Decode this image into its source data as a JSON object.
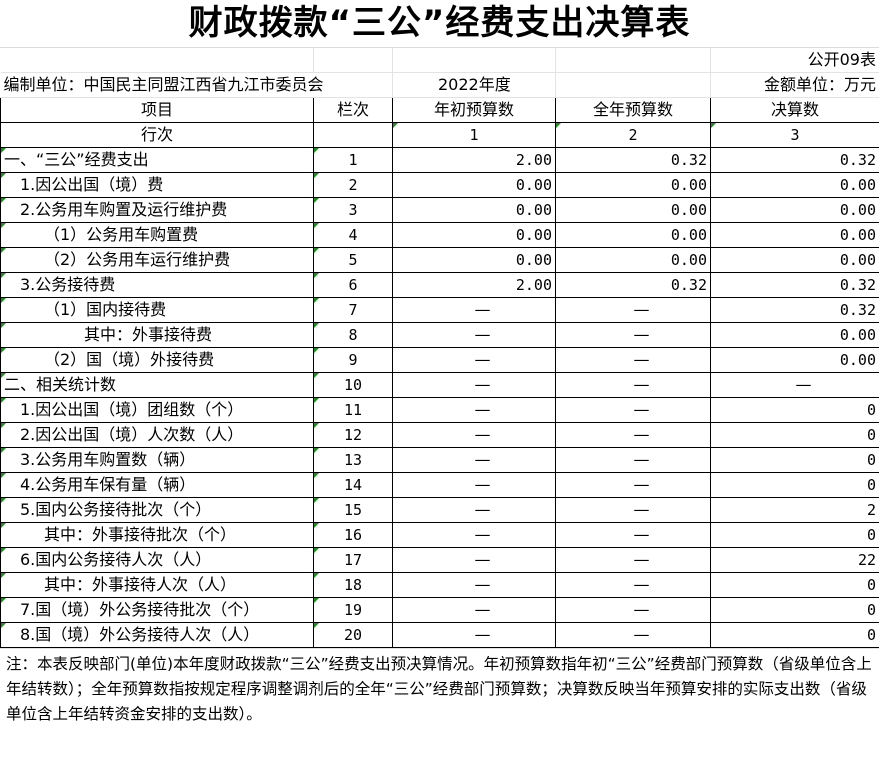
{
  "title": "财政拨款“三公”经费支出决算表",
  "form_code": "公开09表",
  "unit_label": "编制单位：中国民主同盟江西省九江市委员会",
  "year": "2022年度",
  "amount_unit": "金额单位：万元",
  "headers": {
    "item": "项目",
    "col_no": "栏次",
    "initial_budget": "年初预算数",
    "annual_budget": "全年预算数",
    "final_account": "决算数"
  },
  "row_label": {
    "item": "行次",
    "c1": "1",
    "c2": "2",
    "c3": "3"
  },
  "rows": [
    {
      "label": "一、“三公”经费支出",
      "indent": 0,
      "no": "1",
      "v1": "2.00",
      "v2": "0.32",
      "v3": "0.32"
    },
    {
      "label": "1.因公出国（境）费",
      "indent": 1,
      "no": "2",
      "v1": "0.00",
      "v2": "0.00",
      "v3": "0.00"
    },
    {
      "label": "2.公务用车购置及运行维护费",
      "indent": 1,
      "no": "3",
      "v1": "0.00",
      "v2": "0.00",
      "v3": "0.00"
    },
    {
      "label": "（1）公务用车购置费",
      "indent": 2,
      "no": "4",
      "v1": "0.00",
      "v2": "0.00",
      "v3": "0.00"
    },
    {
      "label": "（2）公务用车运行维护费",
      "indent": 2,
      "no": "5",
      "v1": "0.00",
      "v2": "0.00",
      "v3": "0.00"
    },
    {
      "label": "3.公务接待费",
      "indent": 1,
      "no": "6",
      "v1": "2.00",
      "v2": "0.32",
      "v3": "0.32"
    },
    {
      "label": "（1）国内接待费",
      "indent": 2,
      "no": "7",
      "v1": "—",
      "v2": "—",
      "v3": "0.32"
    },
    {
      "label": "其中：外事接待费",
      "indent": 3,
      "no": "8",
      "v1": "—",
      "v2": "—",
      "v3": "0.00"
    },
    {
      "label": "（2）国（境）外接待费",
      "indent": 2,
      "no": "9",
      "v1": "—",
      "v2": "—",
      "v3": "0.00"
    },
    {
      "label": "二、相关统计数",
      "indent": 0,
      "no": "10",
      "v1": "—",
      "v2": "—",
      "v3": "—"
    },
    {
      "label": "1.因公出国（境）团组数（个）",
      "indent": 1,
      "no": "11",
      "v1": "—",
      "v2": "—",
      "v3": "0"
    },
    {
      "label": "2.因公出国（境）人次数（人）",
      "indent": 1,
      "no": "12",
      "v1": "—",
      "v2": "—",
      "v3": "0"
    },
    {
      "label": "3.公务用车购置数（辆）",
      "indent": 1,
      "no": "13",
      "v1": "—",
      "v2": "—",
      "v3": "0"
    },
    {
      "label": "4.公务用车保有量（辆）",
      "indent": 1,
      "no": "14",
      "v1": "—",
      "v2": "—",
      "v3": "0"
    },
    {
      "label": "5.国内公务接待批次（个）",
      "indent": 1,
      "no": "15",
      "v1": "—",
      "v2": "—",
      "v3": "2"
    },
    {
      "label": "其中：外事接待批次（个）",
      "indent": 2,
      "no": "16",
      "v1": "—",
      "v2": "—",
      "v3": "0"
    },
    {
      "label": "6.国内公务接待人次（人）",
      "indent": 1,
      "no": "17",
      "v1": "—",
      "v2": "—",
      "v3": "22"
    },
    {
      "label": "其中：外事接待人次（人）",
      "indent": 2,
      "no": "18",
      "v1": "—",
      "v2": "—",
      "v3": "0"
    },
    {
      "label": "7.国（境）外公务接待批次（个）",
      "indent": 1,
      "no": "19",
      "v1": "—",
      "v2": "—",
      "v3": "0"
    },
    {
      "label": "8.国（境）外公务接待人次（人）",
      "indent": 1,
      "no": "20",
      "v1": "—",
      "v2": "—",
      "v3": "0"
    }
  ],
  "note": "注：本表反映部门(单位)本年度财政拨款“三公”经费支出预决算情况。年初预算数指年初“三公”经费部门预算数（省级单位含上年结转数）；全年预算数指按规定程序调整调剂后的全年“三公”经费部门预算数；决算数反映当年预算安排的实际支出数（省级单位含上年结转资金安排的支出数）。"
}
